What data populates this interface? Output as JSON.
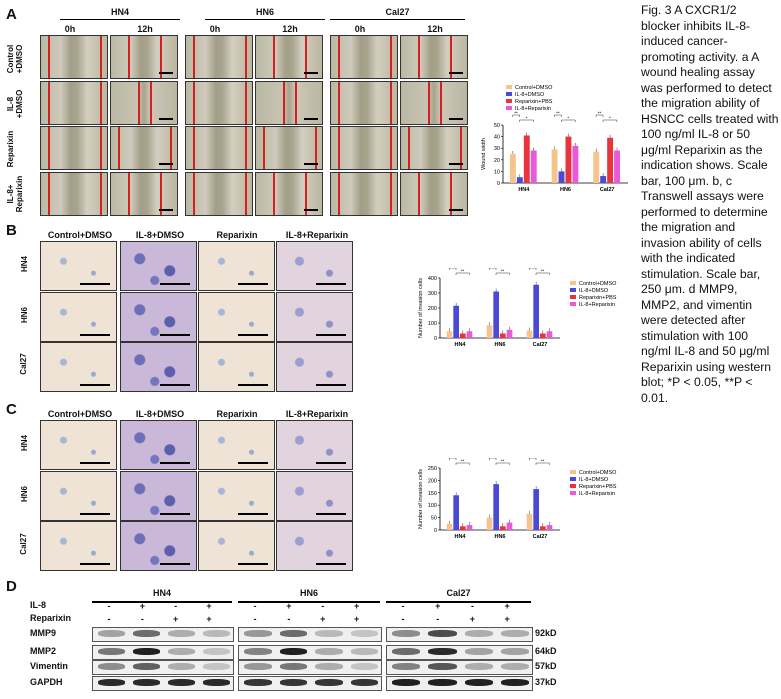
{
  "panels": {
    "a": "A",
    "b": "B",
    "c": "C",
    "d": "D"
  },
  "panel_a": {
    "cell_lines": [
      "HN4",
      "HN6",
      "Cal27"
    ],
    "times": [
      "0h",
      "12h"
    ],
    "rows": [
      "Control\n+DMSO",
      "IL-8\n+DMSO",
      "Reparixin",
      "IL-8+\nReparixin"
    ]
  },
  "panel_bc": {
    "columns": [
      "Control+DMSO",
      "IL-8+DMSO",
      "Reparixin",
      "IL-8+Reparixin"
    ],
    "rows": [
      "HN4",
      "HN6",
      "Cal27"
    ]
  },
  "panel_d": {
    "cell_lines": [
      "HN4",
      "HN6",
      "Cal27"
    ],
    "il8_label": "IL-8",
    "reparixin_label": "Reparixin",
    "il8_signs": [
      "-",
      "+",
      "-",
      "+"
    ],
    "reparixin_signs": [
      "-",
      "-",
      "+",
      "+"
    ],
    "proteins": [
      "MMP9",
      "MMP2",
      "Vimentin",
      "GAPDH"
    ],
    "kd": [
      "92kD",
      "64kD",
      "57kD",
      "37kD"
    ]
  },
  "chart_data": [
    {
      "type": "bar",
      "panel": "A",
      "categories": [
        "HN4",
        "HN6",
        "Cal27"
      ],
      "ylabel": "Wound width",
      "ylim": [
        0,
        50
      ],
      "yticks": [
        0,
        10,
        20,
        30,
        40,
        50
      ],
      "series": [
        {
          "name": "Control+DMSO",
          "color": "#f5c48a",
          "values": [
            25,
            29,
            27
          ]
        },
        {
          "name": "IL-8+DMSO",
          "color": "#4a4ad6",
          "values": [
            5,
            10,
            6
          ]
        },
        {
          "name": "Reparixin+PBS",
          "color": "#e8343a",
          "values": [
            41,
            40,
            39
          ]
        },
        {
          "name": "IL-8+Reparixin",
          "color": "#e95ad8",
          "values": [
            28,
            32,
            28
          ]
        }
      ],
      "significance": [
        "**",
        "*"
      ]
    },
    {
      "type": "bar",
      "panel": "B",
      "categories": [
        "HN4",
        "HN6",
        "Cal27"
      ],
      "ylabel": "Number of invasion cells",
      "ylim": [
        0,
        400
      ],
      "yticks": [
        0,
        100,
        200,
        300,
        400
      ],
      "series": [
        {
          "name": "Control+DMSO",
          "color": "#f5c48a",
          "values": [
            45,
            85,
            50
          ]
        },
        {
          "name": "IL-8+DMSO",
          "color": "#4a4ad6",
          "values": [
            215,
            310,
            355
          ]
        },
        {
          "name": "Reparixin+PBS",
          "color": "#e8343a",
          "values": [
            30,
            30,
            30
          ]
        },
        {
          "name": "IL-8+Reparixin",
          "color": "#e95ad8",
          "values": [
            45,
            55,
            45
          ]
        }
      ],
      "significance": [
        "**",
        "**"
      ]
    },
    {
      "type": "bar",
      "panel": "C",
      "categories": [
        "HN4",
        "HN6",
        "Cal27"
      ],
      "ylabel": "Number of invasion cells",
      "ylim": [
        0,
        250
      ],
      "yticks": [
        0,
        50,
        100,
        150,
        200,
        250
      ],
      "series": [
        {
          "name": "Control+DMSO",
          "color": "#f5c48a",
          "values": [
            25,
            50,
            65
          ]
        },
        {
          "name": "IL-8+DMSO",
          "color": "#4a4ad6",
          "values": [
            140,
            185,
            165
          ]
        },
        {
          "name": "Reparixin+PBS",
          "color": "#e8343a",
          "values": [
            15,
            15,
            15
          ]
        },
        {
          "name": "IL-8+Reparixin",
          "color": "#e95ad8",
          "values": [
            20,
            30,
            20
          ]
        }
      ],
      "significance": [
        "**",
        "**"
      ]
    }
  ],
  "caption": "Fig. 3 A CXCR1/2 blocker inhibits IL-8-induced cancer-promoting activity. a A wound healing assay was performed to detect the migration ability of HSNCC cells treated with 100 ng/ml IL-8 or 50 μg/ml Reparixin as the indication shows. Scale bar, 100 μm. b, c Transwell assays were performed to determine the migration and invasion ability of cells with the indicated stimulation. Scale bar, 250 μm. d MMP9, MMP2, and vimentin were detected after stimulation with 100 ng/ml IL-8 and 50 μg/ml Reparixin using western blot; *P < 0.05, **P < 0.01."
}
